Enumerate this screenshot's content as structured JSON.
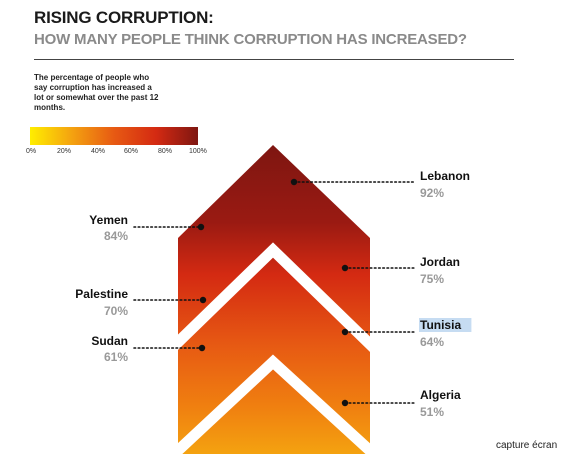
{
  "title": "RISING CORRUPTION:",
  "subtitle": "HOW MANY PEOPLE THINK CORRUPTION HAS INCREASED?",
  "description": "The percentage of people who say corruption has increased a lot or somewhat over the past 12 months.",
  "scale": {
    "labels": [
      "0%",
      "20%",
      "40%",
      "60%",
      "80%",
      "100%"
    ],
    "colors": [
      "#ffee00",
      "#f4a210",
      "#e75a13",
      "#d42a12",
      "#7e1611"
    ]
  },
  "credit": "capture écran",
  "highlight_color": "#c6dcf2",
  "chart_data": {
    "type": "bar",
    "title": "RISING CORRUPTION:",
    "subtitle": "HOW MANY PEOPLE THINK CORRUPTION HAS INCREASED?",
    "categories": [
      "Lebanon",
      "Yemen",
      "Jordan",
      "Palestine",
      "Tunisia",
      "Sudan",
      "Algeria"
    ],
    "values": [
      92,
      84,
      75,
      70,
      64,
      61,
      51
    ],
    "value_labels": [
      "92%",
      "84%",
      "75%",
      "70%",
      "64%",
      "61%",
      "51%"
    ],
    "sides": [
      "right",
      "left",
      "right",
      "left",
      "right",
      "left",
      "right"
    ],
    "highlighted": "Tunisia",
    "ylim": [
      0,
      100
    ],
    "xlabel": "",
    "ylabel": "",
    "legend": "none",
    "grid": false
  }
}
